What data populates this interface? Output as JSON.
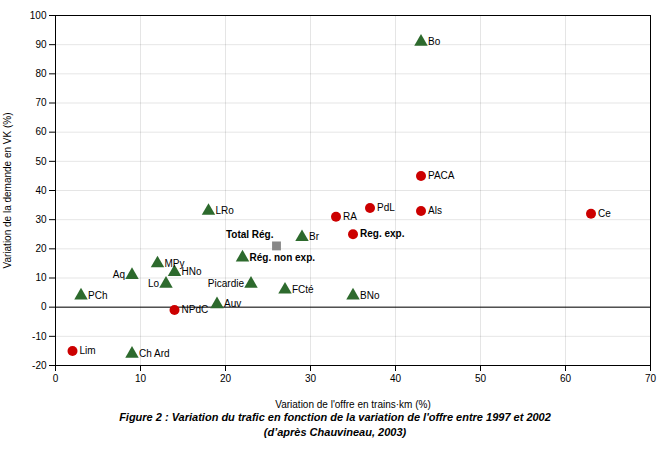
{
  "chart_data": {
    "type": "scatter",
    "title": "Figure 2 : Variation du trafic en fonction de la variation de l'offre entre 1997 et 2002",
    "subtitle": "(d’après Chauvineau, 2003)",
    "xlabel": "Variation de l'offre en trains·km (%)",
    "ylabel": "Variation de la demande en VK (%)",
    "xlim": [
      0,
      70
    ],
    "ylim": [
      -20,
      100
    ],
    "xticks": [
      0,
      10,
      20,
      30,
      40,
      50,
      60,
      70
    ],
    "yticks": [
      -20,
      -10,
      0,
      10,
      20,
      30,
      40,
      50,
      60,
      70,
      80,
      90,
      100
    ],
    "grid": true,
    "hlines": [
      0
    ],
    "series": [
      {
        "color": "#cc0000",
        "marker": "circle",
        "x": [
          43,
          37,
          43,
          63,
          33,
          35,
          2,
          14
        ],
        "values": [
          45,
          34,
          33,
          32,
          31,
          25,
          -15,
          -1
        ],
        "labels": [
          "PACA",
          "PdL",
          "Als",
          "Ce",
          "RA",
          "Reg. exp.",
          "Lim",
          "NPdC"
        ],
        "bold": [
          false,
          false,
          false,
          false,
          false,
          true,
          false,
          false
        ]
      },
      {
        "color": "#2d6a2d",
        "marker": "triangle",
        "x": [
          3,
          43,
          12,
          9,
          14,
          13,
          22,
          18,
          23,
          19,
          9,
          27,
          29,
          35
        ],
        "values": [
          4,
          91,
          15,
          11,
          12,
          8,
          17,
          33,
          8,
          1,
          -16,
          6,
          24,
          4
        ],
        "labels": [
          "PCh",
          "Bo",
          "MPy",
          "Aq",
          "HNo",
          "Lo",
          "Rég. non exp.",
          "LRo",
          "Picardie",
          "Auv",
          "Ch Ard",
          "FCté",
          "Br",
          "BNo"
        ],
        "bold": [
          false,
          false,
          false,
          false,
          false,
          false,
          true,
          false,
          false,
          false,
          false,
          false,
          false,
          false
        ]
      },
      {
        "color": "#888888",
        "marker": "square",
        "x": [
          26
        ],
        "values": [
          21
        ],
        "labels": [
          "Total Rég."
        ],
        "bold": [
          true
        ]
      }
    ]
  }
}
